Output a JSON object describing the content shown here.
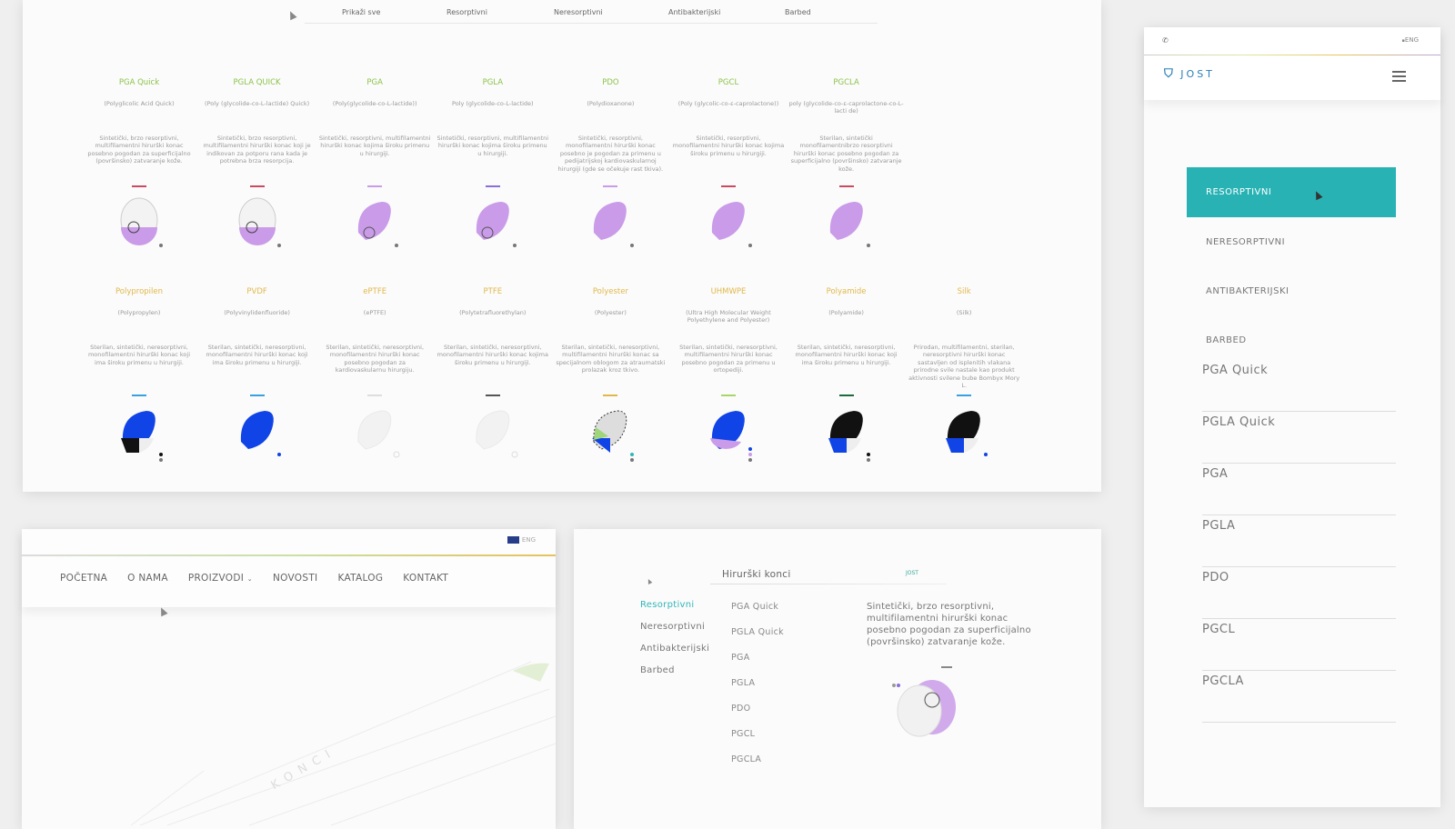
{
  "catalog": {
    "filters": [
      "Prikaži sve",
      "Resorptivni",
      "Neresorptivni",
      "Antibakterijski",
      "Barbed"
    ],
    "row1": [
      {
        "name": "PGA Quick",
        "latin": "(Polyglicolic Acid Quick)",
        "desc": "Sintetički, brzo resorptivni, multifilamentni hirurški konac posebno pogodan za superficijalno (površinsko) zatvaranje kože."
      },
      {
        "name": "PGLA QUICK",
        "latin": "(Poly (glycolide-co-L-lactide) Quick)",
        "desc": "Sintetički, brzo resorptivni, multifilamentni hirurški konac koji je indikovan za potporu rana kada je potrebna brza resorpcija."
      },
      {
        "name": "PGA",
        "latin": "(Poly(glycolide-co-L-lactide))",
        "desc": "Sintetički, resorptivni, multifilamentni hirurški konac kojima široku primenu u hirurgiji."
      },
      {
        "name": "PGLA",
        "latin": "Poly (glycolide-co-L-lactide)",
        "desc": "Sintetički, resorptivni, multifilamentni hirurški konac kojima široku primenu u hirurgiji."
      },
      {
        "name": "PDO",
        "latin": "(Polydioxanone)",
        "desc": "Sintetički, resorptivni, monofilamentni hirurški konac posebno je pogodan za primenu u pedijatrijskoj kardiovaskularnoj hirurgiji (gde se očekuje rast tkiva)."
      },
      {
        "name": "PGCL",
        "latin": "(Poly (glycolic-co-ε-caprolactone))",
        "desc": "Sintetički, resorptivni, monofilamentni hirurški konac kojima široku primenu u hirurgiji."
      },
      {
        "name": "PGCLA",
        "latin": "poly (glycolide-co-ε-caprolactone-co-L-lacti de)",
        "desc": "Sterilan, sintetički monofilamentnibrzo resorptivni hirurški konac posebno pogodan za superficijalno (površinsko) zatvaranje kože."
      }
    ],
    "row2": [
      {
        "name": "Polypropilen",
        "latin": "(Polypropylen)",
        "desc": "Sterilan, sintetički, neresorptivni, monofilamentni hirurški konac koji ima široku primenu u hirurgiji."
      },
      {
        "name": "PVDF",
        "latin": "(Polyvinylidenfluoride)",
        "desc": "Sterilan, sintetički, neresorptivni, monofilamentni hirurški konac koji ima široku primenu u hirurgiji."
      },
      {
        "name": "ePTFE",
        "latin": "(ePTFE)",
        "desc": "Sterilan, sintetički, neresorptivni, monofilamentni hirurški konac posebno pogodan za kardiovaskularnu hirurgiju."
      },
      {
        "name": "PTFE",
        "latin": "(Polytetrafluorethylan)",
        "desc": "Sterilan, sintetički, neresorptivni, monofilamentni hirurški konac kojima široku primenu u hirurgiji."
      },
      {
        "name": "Polyester",
        "latin": "(Polyester)",
        "desc": "Sterilan, sintetički, neresorptivni, multifilamentni hirurški konac sa specijalnom oblogom za atraumatski prolazak kroz tkivo."
      },
      {
        "name": "UHMWPE",
        "latin": "(Ultra High Molecular Weight Polyethylene and Polyester)",
        "desc": "Sterilan, sintetički, neresorptivni, multifilamentni hirurški konac posebno pogodan za primenu u ortopediji."
      },
      {
        "name": "Polyamide",
        "latin": "(Polyamide)",
        "desc": "Sterilan, sintetički, neresorptivni, monofilamentni hirurški konac koji ima široku primenu u hirurgiji."
      },
      {
        "name": "Silk",
        "latin": "(Silk)",
        "desc": "Prirodan, multifilamentni, sterilan, neresorptivni hirurški konac sastavljen od isplenitih vlakana prirodne svile nastale kao produkt aktivnosti svilene bube Bombyx Mory L."
      }
    ]
  },
  "home": {
    "lang": "ENG",
    "nav": [
      "POČETNA",
      "O NAMA",
      "PROIZVODI",
      "NOVOSTI",
      "KATALOG",
      "KONTAKT"
    ],
    "hero_text": "KONCI"
  },
  "menu": {
    "title": "Hirurški konci",
    "logo": "JOST",
    "categories": [
      "Resorptivni",
      "Neresorptivni",
      "Antibakterijski",
      "Barbed"
    ],
    "products": [
      "PGA Quick",
      "PGLA Quick",
      "PGA",
      "PGLA",
      "PDO",
      "PGCL",
      "PGCLA"
    ],
    "desc": "Sintetički, brzo resorptivni, multifilamentni hirurški konac posebno pogodan za superficijalno (površinsko) zatvaranje kože."
  },
  "mobile": {
    "lang": "ENG",
    "logo": "JOST",
    "active": "RESORPTIVNI",
    "categories": [
      "NERESORPTIVNI",
      "ANTIBAKTERIJSKI",
      "BARBED"
    ],
    "products": [
      "PGA Quick",
      "PGLA Quick",
      "PGA",
      "PGLA",
      "PDO",
      "PGCL",
      "PGCLA"
    ]
  },
  "colors": {
    "teal": "#29b2b4",
    "purple": "#c99be8",
    "blue": "#1144e6",
    "black": "#111111",
    "green_label": "#8bc34a",
    "yellow_label": "#e0b84a"
  }
}
